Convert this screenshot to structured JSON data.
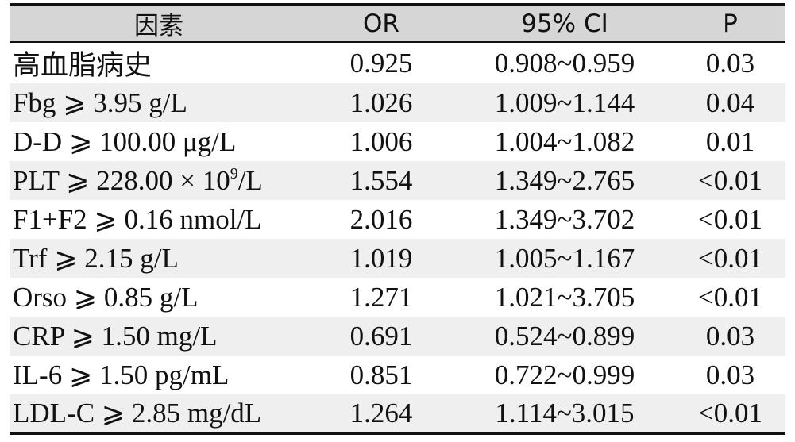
{
  "table": {
    "headers": {
      "factor": "因素",
      "or": "OR",
      "ci": "95% CI",
      "p": "P"
    },
    "rows": [
      {
        "factor": "高血脂病史",
        "or": "0.925",
        "ci": "0.908~0.959",
        "p": "0.03"
      },
      {
        "factor": "Fbg ⩾ 3.95 g/L",
        "or": "1.026",
        "ci": "1.009~1.144",
        "p": "0.04"
      },
      {
        "factor": "D-D ⩾ 100.00 μg/L",
        "or": "1.006",
        "ci": "1.004~1.082",
        "p": "0.01"
      },
      {
        "factor_base": "PLT ⩾ 228.00 × 10",
        "factor_sup": "9",
        "factor_tail": "/L",
        "or": "1.554",
        "ci": "1.349~2.765",
        "p": "<0.01"
      },
      {
        "factor": "F1+F2 ⩾ 0.16 nmol/L",
        "or": "2.016",
        "ci": "1.349~3.702",
        "p": "<0.01"
      },
      {
        "factor": "Trf ⩾ 2.15 g/L",
        "or": "1.019",
        "ci": "1.005~1.167",
        "p": "<0.01"
      },
      {
        "factor": "Orso ⩾ 0.85 g/L",
        "or": "1.271",
        "ci": "1.021~3.705",
        "p": "<0.01"
      },
      {
        "factor": "CRP ⩾ 1.50 mg/L",
        "or": "0.691",
        "ci": "0.524~0.899",
        "p": "0.03"
      },
      {
        "factor": "IL-6 ⩾ 1.50 pg/mL",
        "or": "0.851",
        "ci": "0.722~0.999",
        "p": "0.03"
      },
      {
        "factor": "LDL-C ⩾ 2.85 mg/dL",
        "or": "1.264",
        "ci": "1.114~3.015",
        "p": "<0.01"
      }
    ]
  }
}
